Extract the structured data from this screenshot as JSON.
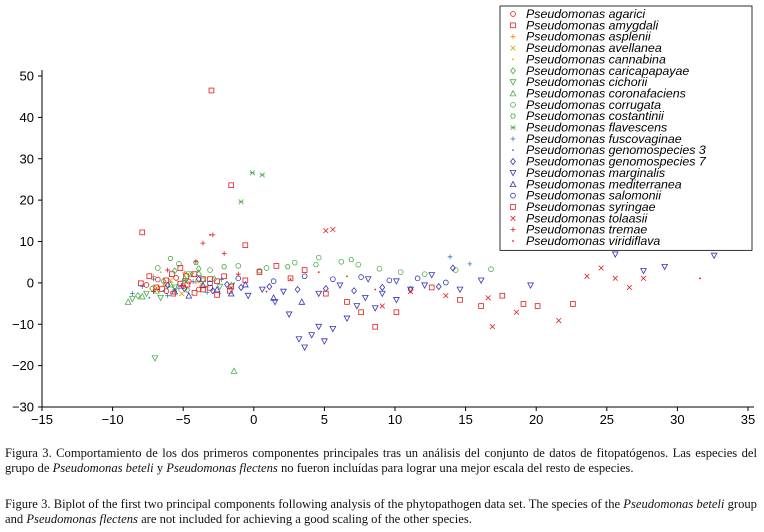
{
  "chart_data": {
    "type": "scatter",
    "title": "",
    "xlabel": "",
    "ylabel": "",
    "xlim": [
      -15,
      35
    ],
    "ylim": [
      -30,
      50
    ],
    "xticks": [
      "−15",
      "−10",
      "−5",
      "0",
      "5",
      "10",
      "15",
      "20",
      "25",
      "30",
      "35"
    ],
    "xtick_values": [
      -15,
      -10,
      -5,
      0,
      5,
      10,
      15,
      20,
      25,
      30,
      35
    ],
    "yticks": [
      "50",
      "40",
      "30",
      "20",
      "10",
      "0",
      "−10",
      "−20",
      "−30"
    ],
    "ytick_values": [
      50,
      40,
      30,
      20,
      10,
      0,
      -10,
      -20,
      -30
    ],
    "grid": false,
    "legend_position": "top-right",
    "series": [
      {
        "name": "Pseudomonas agarici",
        "marker": "circle",
        "color": "#e41a1c",
        "points": [
          [
            -7.6,
            -0.5
          ],
          [
            -6.8,
            0.8
          ],
          [
            -6.2,
            -2.0
          ],
          [
            -5.5,
            1.2
          ],
          [
            -5.0,
            -0.8
          ],
          [
            -4.6,
            0.3
          ],
          [
            -3.9,
            -1.6
          ]
        ]
      },
      {
        "name": "Pseudomonas amygdali",
        "marker": "square",
        "color": "#e41a1c",
        "points": [
          [
            -7.9,
            12.2
          ],
          [
            -6.5,
            -1.5
          ],
          [
            -5.8,
            2.1
          ],
          [
            -5.2,
            -0.2
          ],
          [
            -4.8,
            1.6
          ],
          [
            -4.2,
            -2.4
          ],
          [
            -3.6,
            0.9
          ],
          [
            -3.1,
            -1.2
          ],
          [
            -2.6,
            0.4
          ],
          [
            -1.7,
            -1.9
          ],
          [
            -0.6,
            0.6
          ],
          [
            -3.0,
            46.5
          ]
        ]
      },
      {
        "name": "Pseudomonas asplenii",
        "marker": "plus",
        "color": "#ff7f00",
        "points": [
          [
            -7.1,
            1.5
          ],
          [
            -6.3,
            -0.6
          ],
          [
            -5.6,
            -1.9
          ],
          [
            -4.9,
            2.4
          ],
          [
            -4.1,
            0.2
          ],
          [
            -3.3,
            -1.0
          ]
        ]
      },
      {
        "name": "Pseudomonas avellanea",
        "marker": "cross",
        "color": "#d9a300",
        "points": [
          [
            -6.9,
            -1.2
          ],
          [
            -5.9,
            0.6
          ],
          [
            -5.1,
            -2.6
          ],
          [
            -4.4,
            1.9
          ],
          [
            -3.7,
            -0.3
          ]
        ]
      },
      {
        "name": "Pseudomonas cannabina",
        "marker": "dot",
        "color": "#c9b300",
        "points": [
          [
            -6.6,
            2.6
          ],
          [
            -5.7,
            -0.9
          ],
          [
            -4.7,
            0.7
          ],
          [
            -3.8,
            -2.1
          ],
          [
            -2.9,
            1.3
          ]
        ]
      },
      {
        "name": "Pseudomonas caricapapayae",
        "marker": "diamond",
        "color": "#4daf4a",
        "points": [
          [
            -8.2,
            -3.1
          ],
          [
            -7.2,
            -1.4
          ],
          [
            -6.4,
            0.4
          ],
          [
            -5.6,
            2.9
          ],
          [
            -4.7,
            -1.7
          ],
          [
            -3.9,
            3.4
          ],
          [
            -2.8,
            0.9
          ],
          [
            -1.6,
            -0.6
          ]
        ]
      },
      {
        "name": "Pseudomonas cichorii",
        "marker": "triangle-down",
        "color": "#4daf4a",
        "points": [
          [
            -7.0,
            -18.2
          ],
          [
            -8.6,
            -3.9
          ],
          [
            -7.6,
            -2.6
          ],
          [
            -6.6,
            -3.6
          ],
          [
            -5.6,
            -1.1
          ],
          [
            -4.6,
            2.1
          ],
          [
            -3.6,
            0.6
          ],
          [
            -2.4,
            -0.9
          ]
        ]
      },
      {
        "name": "Pseudomonas coronafaciens",
        "marker": "triangle-up",
        "color": "#4daf4a",
        "points": [
          [
            -1.4,
            -21.3
          ],
          [
            -8.9,
            -4.6
          ],
          [
            -7.9,
            -3.3
          ],
          [
            -6.9,
            -1.9
          ],
          [
            -5.9,
            -0.4
          ],
          [
            -4.9,
            1.1
          ],
          [
            -3.9,
            2.4
          ]
        ]
      },
      {
        "name": "Pseudomonas corrugata",
        "marker": "circle",
        "color": "#4daf4a",
        "points": [
          [
            -6.8,
            3.6
          ],
          [
            -5.3,
            4.6
          ],
          [
            -3.1,
            3.1
          ],
          [
            -1.1,
            4.1
          ],
          [
            0.9,
            3.6
          ],
          [
            2.9,
            4.9
          ],
          [
            4.6,
            6.1
          ],
          [
            6.2,
            5.1
          ],
          [
            7.4,
            4.4
          ],
          [
            8.9,
            3.4
          ],
          [
            10.4,
            2.6
          ],
          [
            12.1,
            2.1
          ],
          [
            14.3,
            3.1
          ],
          [
            16.8,
            3.3
          ]
        ]
      },
      {
        "name": "Pseudomonas costantinii",
        "marker": "hexagon",
        "color": "#4daf4a",
        "points": [
          [
            -5.9,
            5.9
          ],
          [
            -4.1,
            4.9
          ],
          [
            -2.1,
            3.9
          ],
          [
            0.4,
            2.9
          ],
          [
            2.4,
            3.9
          ],
          [
            4.4,
            4.4
          ],
          [
            6.9,
            5.6
          ]
        ]
      },
      {
        "name": "Pseudomonas flavescens",
        "marker": "star",
        "color": "#4daf4a",
        "points": [
          [
            -0.9,
            19.6
          ],
          [
            -0.1,
            26.6
          ],
          [
            0.6,
            26.1
          ],
          [
            -5.6,
            -1.6
          ],
          [
            -4.9,
            0.6
          ]
        ]
      },
      {
        "name": "Pseudomonas fuscovaginae",
        "marker": "plus",
        "color": "#377eb8",
        "points": [
          [
            -8.6,
            -2.6
          ],
          [
            -7.9,
            -0.9
          ],
          [
            -7.1,
            0.9
          ],
          [
            -6.1,
            -3.1
          ],
          [
            -5.3,
            -1.3
          ],
          [
            -4.3,
            0.3
          ],
          [
            -3.3,
            -2.3
          ],
          [
            -2.3,
            0.8
          ],
          [
            13.9,
            6.3
          ],
          [
            15.3,
            4.6
          ]
        ]
      },
      {
        "name": "Pseudomonas genomospecies 3",
        "marker": "dot",
        "color": "#377eb8",
        "points": [
          [
            -7.4,
            -3.6
          ],
          [
            -6.4,
            -1.9
          ],
          [
            -5.4,
            -0.4
          ],
          [
            -4.4,
            1.6
          ],
          [
            -3.4,
            -0.9
          ],
          [
            -2.4,
            -2.6
          ],
          [
            -1.4,
            -0.1
          ]
        ]
      },
      {
        "name": "Pseudomonas genomospecies 7",
        "marker": "diamond",
        "color": "#3535b8",
        "points": [
          [
            -6.1,
            -0.6
          ],
          [
            -4.9,
            -1.4
          ],
          [
            -3.9,
            0.9
          ],
          [
            -2.9,
            -1.9
          ],
          [
            -1.9,
            -0.4
          ],
          [
            -0.9,
            -1.1
          ],
          [
            1.1,
            -0.9
          ],
          [
            3.1,
            -1.6
          ],
          [
            5.1,
            -1.4
          ],
          [
            7.1,
            -1.9
          ],
          [
            9.1,
            -1.1
          ],
          [
            11.1,
            -1.6
          ],
          [
            13.1,
            -0.9
          ],
          [
            14.1,
            3.6
          ]
        ]
      },
      {
        "name": "Pseudomonas marginalis",
        "marker": "triangle-down",
        "color": "#3535b8",
        "points": [
          [
            1.5,
            -4.6
          ],
          [
            2.5,
            -7.6
          ],
          [
            3.2,
            -13.6
          ],
          [
            4.1,
            -12.6
          ],
          [
            4.6,
            -10.6
          ],
          [
            5.0,
            -14.1
          ],
          [
            5.6,
            -11.1
          ],
          [
            3.6,
            -15.6
          ],
          [
            6.6,
            -8.6
          ],
          [
            7.3,
            -5.6
          ],
          [
            7.9,
            -3.6
          ],
          [
            8.6,
            -6.1
          ],
          [
            9.1,
            -2.6
          ],
          [
            10.1,
            -4.1
          ],
          [
            11.1,
            -1.6
          ],
          [
            12.1,
            -0.6
          ],
          [
            2.1,
            -2.1
          ],
          [
            0.6,
            -1.6
          ],
          [
            -0.4,
            -3.1
          ],
          [
            4.6,
            -2.6
          ],
          [
            6.1,
            -0.6
          ],
          [
            8.1,
            0.9
          ],
          [
            10.1,
            0.4
          ],
          [
            12.6,
            1.9
          ],
          [
            14.6,
            -1.6
          ],
          [
            16.1,
            0.6
          ],
          [
            19.6,
            -0.6
          ],
          [
            25.6,
            6.9
          ],
          [
            27.6,
            2.9
          ],
          [
            29.1,
            3.9
          ],
          [
            32.6,
            6.6
          ]
        ]
      },
      {
        "name": "Pseudomonas mediterranea",
        "marker": "triangle-up",
        "color": "#3535b8",
        "points": [
          [
            -5.6,
            -2.1
          ],
          [
            -4.6,
            -3.1
          ],
          [
            -3.6,
            -0.6
          ],
          [
            -2.6,
            -1.6
          ],
          [
            -1.6,
            -2.6
          ],
          [
            -0.6,
            -0.4
          ],
          [
            1.4,
            -3.6
          ],
          [
            3.4,
            -4.6
          ]
        ]
      },
      {
        "name": "Pseudomonas salomonii",
        "marker": "circle",
        "color": "#3535b8",
        "points": [
          [
            -3.1,
            -0.1
          ],
          [
            -1.1,
            1.1
          ],
          [
            1.4,
            0.4
          ],
          [
            3.6,
            1.6
          ],
          [
            5.6,
            0.9
          ],
          [
            7.6,
            1.4
          ],
          [
            9.6,
            0.6
          ],
          [
            11.6,
            1.1
          ],
          [
            13.6,
            0.1
          ]
        ]
      },
      {
        "name": "Pseudomonas syringae",
        "marker": "square",
        "color": "#e41a1c",
        "points": [
          [
            -8.0,
            -0.1
          ],
          [
            -7.4,
            1.6
          ],
          [
            -6.9,
            -1.1
          ],
          [
            -6.2,
            0.6
          ],
          [
            -5.7,
            -2.6
          ],
          [
            -5.2,
            3.6
          ],
          [
            -4.7,
            -0.4
          ],
          [
            -4.2,
            2.1
          ],
          [
            -3.6,
            -1.6
          ],
          [
            -3.1,
            0.9
          ],
          [
            -2.6,
            -2.9
          ],
          [
            -2.1,
            1.6
          ],
          [
            -1.6,
            -0.9
          ],
          [
            -1.6,
            23.6
          ],
          [
            -0.6,
            9.1
          ],
          [
            0.4,
            2.6
          ],
          [
            1.6,
            4.1
          ],
          [
            2.6,
            1.1
          ],
          [
            3.6,
            3.1
          ],
          [
            5.1,
            -2.6
          ],
          [
            6.6,
            -4.6
          ],
          [
            7.6,
            -7.1
          ],
          [
            8.6,
            -10.6
          ],
          [
            10.1,
            -7.1
          ],
          [
            12.6,
            -1.1
          ],
          [
            14.6,
            -4.1
          ],
          [
            16.1,
            -5.6
          ],
          [
            17.6,
            -3.1
          ],
          [
            19.1,
            -5.1
          ],
          [
            20.1,
            -5.6
          ],
          [
            22.6,
            -5.1
          ]
        ]
      },
      {
        "name": "Pseudomonas tolaasii",
        "marker": "cross",
        "color": "#e41a1c",
        "points": [
          [
            5.1,
            12.6
          ],
          [
            5.6,
            12.9
          ],
          [
            9.1,
            -5.6
          ],
          [
            11.1,
            -2.1
          ],
          [
            13.6,
            -3.1
          ],
          [
            16.6,
            -3.6
          ],
          [
            16.9,
            -10.6
          ],
          [
            18.6,
            -7.1
          ],
          [
            21.6,
            -9.1
          ],
          [
            23.6,
            1.6
          ],
          [
            24.6,
            3.6
          ],
          [
            25.6,
            1.1
          ],
          [
            26.6,
            -1.1
          ],
          [
            27.6,
            1.1
          ]
        ]
      },
      {
        "name": "Pseudomonas tremae",
        "marker": "plus",
        "color": "#e41a1c",
        "points": [
          [
            -7.1,
            -2.1
          ],
          [
            -6.1,
            3.1
          ],
          [
            -5.1,
            -0.6
          ],
          [
            -4.1,
            5.1
          ],
          [
            -3.6,
            9.6
          ],
          [
            -2.9,
            11.6
          ],
          [
            -2.1,
            7.1
          ],
          [
            -1.1,
            2.1
          ]
        ]
      },
      {
        "name": "Pseudomonas viridiflava",
        "marker": "dot",
        "color": "#e41a1c",
        "points": [
          [
            -3.1,
            11.6
          ],
          [
            -1.6,
            -1.1
          ],
          [
            0.9,
            -2.1
          ],
          [
            2.6,
            0.9
          ],
          [
            4.6,
            2.6
          ],
          [
            6.6,
            1.6
          ],
          [
            8.6,
            -1.6
          ],
          [
            31.6,
            1.1
          ]
        ]
      }
    ]
  },
  "captions": {
    "es_part1": "Figura 3. Comportamiento de los dos primeros componentes principales tras un análisis del conjunto de datos de fitopatógenos. Las especies del grupo de ",
    "es_it1": "Pseudomonas beteli",
    "es_part2": " y ",
    "es_it2": "Pseudomonas flectens",
    "es_part3": " no fueron incluídas para lograr una mejor escala del resto de especies.",
    "en_part1": "Figure 3. Biplot of the first two principal components following analysis of the phytopathogen data set. The species of the ",
    "en_it1": "Pseudomonas beteli",
    "en_part2": " group and ",
    "en_it2": "Pseudomonas flectens",
    "en_part3": " are not included for achieving a good scaling of the other species."
  }
}
